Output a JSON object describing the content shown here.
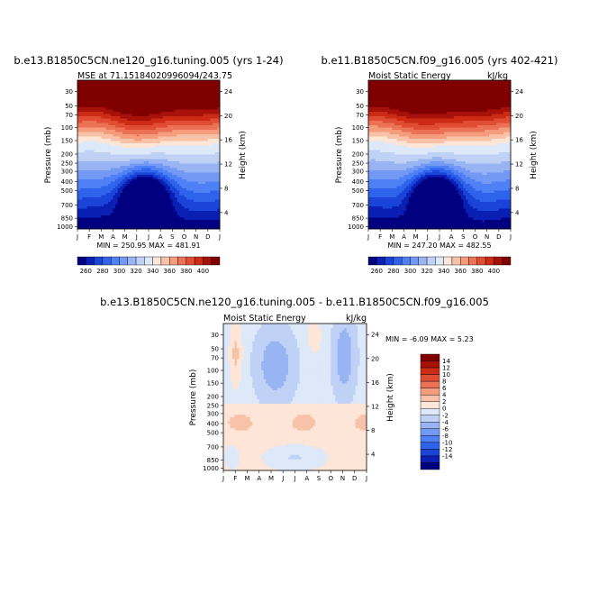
{
  "colors": {
    "palette": [
      "#000080",
      "#0a1fb4",
      "#1a44d8",
      "#2f63ec",
      "#4f80f5",
      "#7399f4",
      "#98b4f2",
      "#bfd2f5",
      "#dde8f8",
      "#fde5d8",
      "#f8c2a8",
      "#f49c7c",
      "#ec7256",
      "#e14d34",
      "#cc2b16",
      "#a8100a",
      "#800000"
    ]
  },
  "chart_data": [
    {
      "type": "heatmap",
      "title": "b.e13.B1850C5CN.ne120_g16.tuning.005 (yrs 1-24)",
      "subtitle_left": "MSE at 71.15184020996094/243.75",
      "subtitle_right": "",
      "ylabel": "Pressure (mb)",
      "ylabel_right": "Height (km)",
      "x_ticks": [
        "J",
        "F",
        "M",
        "A",
        "M",
        "J",
        "J",
        "A",
        "S",
        "O",
        "N",
        "D",
        "J"
      ],
      "y_ticks": [
        "30",
        "50",
        "70",
        "100",
        "150",
        "200",
        "250",
        "300",
        "400",
        "500",
        "700",
        "850",
        "1000"
      ],
      "y2_ticks": [
        "24",
        "20",
        "16",
        "12",
        "8",
        "4"
      ],
      "stats": "MIN = 250.95 MAX = 481.91",
      "min": 250.95,
      "max": 481.91,
      "colorbar_labels": [
        "260",
        "280",
        "300",
        "320",
        "340",
        "360",
        "380",
        "400"
      ]
    },
    {
      "type": "heatmap",
      "title": "b.e11.B1850C5CN.f09_g16.005 (yrs 402-421)",
      "subtitle_left": "Moist Static Energy",
      "subtitle_right": "kJ/kg",
      "ylabel": "Pressure (mb)",
      "ylabel_right": "Height (km)",
      "x_ticks": [
        "J",
        "F",
        "M",
        "A",
        "M",
        "J",
        "J",
        "A",
        "S",
        "O",
        "N",
        "D",
        "J"
      ],
      "y_ticks": [
        "30",
        "50",
        "70",
        "100",
        "150",
        "200",
        "250",
        "300",
        "400",
        "500",
        "700",
        "850",
        "1000"
      ],
      "y2_ticks": [
        "24",
        "20",
        "16",
        "12",
        "8",
        "4"
      ],
      "stats": "MIN = 247.20 MAX = 482.55",
      "min": 247.2,
      "max": 482.55,
      "colorbar_labels": [
        "260",
        "280",
        "300",
        "320",
        "340",
        "360",
        "380",
        "400"
      ]
    },
    {
      "type": "heatmap",
      "title": "b.e13.B1850C5CN.ne120_g16.tuning.005 - b.e11.B1850C5CN.f09_g16.005",
      "subtitle_left": "Moist Static Energy",
      "subtitle_right": "kJ/kg",
      "ylabel": "Pressure (mb)",
      "ylabel_right": "Height (km)",
      "x_ticks": [
        "J",
        "F",
        "M",
        "A",
        "M",
        "J",
        "J",
        "A",
        "S",
        "O",
        "N",
        "D",
        "J"
      ],
      "y_ticks": [
        "30",
        "50",
        "70",
        "100",
        "150",
        "200",
        "250",
        "300",
        "400",
        "500",
        "700",
        "850",
        "1000"
      ],
      "y2_ticks": [
        "24",
        "20",
        "16",
        "12",
        "8",
        "4"
      ],
      "stats": "MIN =   -6.09 MAX =    5.23",
      "min": -6.09,
      "max": 5.23,
      "colorbar_labels": [
        "14",
        "12",
        "10",
        "8",
        "6",
        "4",
        "2",
        "0",
        "-2",
        "-4",
        "-6",
        "-8",
        "-10",
        "-12",
        "-14"
      ]
    }
  ]
}
